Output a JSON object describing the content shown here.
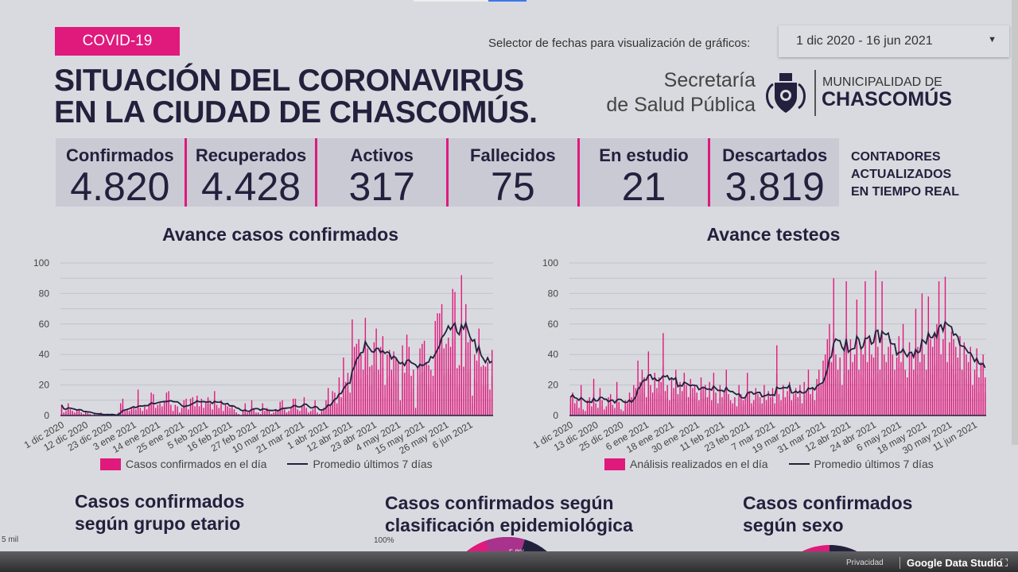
{
  "header": {
    "badge": "COVID-19",
    "title_line1": "SITUACIÓN DEL CORONAVIRUS",
    "title_line2": "EN LA CIUDAD DE CHASCOMÚS.",
    "selector_label": "Selector de fechas para visualización de gráficos:",
    "selector_value": "1 dic 2020 - 16 jun 2021",
    "sec_line1": "Secretaría",
    "sec_line2": "de Salud Pública",
    "muni_line1": "MUNICIPALIDAD DE",
    "muni_line2": "CHASCOMÚS"
  },
  "counters": [
    {
      "label": "Confirmados",
      "value": "4.820"
    },
    {
      "label": "Recuperados",
      "value": "4.428"
    },
    {
      "label": "Activos",
      "value": "317"
    },
    {
      "label": "Fallecidos",
      "value": "75"
    },
    {
      "label": "En estudio",
      "value": "21"
    },
    {
      "label": "Descartados",
      "value": "3.819"
    }
  ],
  "realtime": {
    "l1": "CONTADORES",
    "l2": "ACTUALIZADOS",
    "l3": "EN TIEMPO REAL"
  },
  "colors": {
    "accent": "#e0197d",
    "navy": "#22213d"
  },
  "chart_data": [
    {
      "type": "bar",
      "title": "Avance casos confirmados",
      "ylim": [
        0,
        100
      ],
      "yticks": [
        "0",
        "20",
        "40",
        "60",
        "80",
        "100"
      ],
      "grid": true,
      "legend_placement": "bottom",
      "start_date": "2020-12-01",
      "xticks": [
        "1 dic 2020",
        "12 dic 2020",
        "23 dic 2020",
        "3 ene 2021",
        "14 ene 2021",
        "25 ene 2021",
        "5 feb 2021",
        "16 feb 2021",
        "27 feb 2021",
        "10 mar 2021",
        "21 mar 2021",
        "1 abr 2021",
        "12 abr 2021",
        "23 abr 2021",
        "4 may 2021",
        "15 may 2021",
        "26 may 2021",
        "6 jun 2021"
      ],
      "xtick_step_days": 11,
      "series": [
        {
          "name": "Casos confirmados en el día",
          "kind": "bar",
          "values": [
            7,
            2,
            3,
            8,
            4,
            3,
            2,
            3,
            4,
            2,
            1,
            3,
            2,
            1,
            0,
            1,
            0,
            1,
            2,
            0,
            0,
            1,
            0,
            1,
            0,
            0,
            2,
            8,
            11,
            3,
            4,
            3,
            5,
            6,
            4,
            17,
            5,
            3,
            6,
            4,
            8,
            15,
            14,
            5,
            7,
            8,
            6,
            9,
            15,
            16,
            7,
            3,
            7,
            6,
            2,
            5,
            10,
            11,
            4,
            11,
            12,
            6,
            13,
            6,
            11,
            5,
            9,
            12,
            8,
            4,
            16,
            7,
            5,
            10,
            3,
            8,
            6,
            5,
            7,
            4,
            2,
            1,
            0,
            3,
            8,
            2,
            3,
            10,
            4,
            2,
            2,
            1,
            8,
            3,
            5,
            3,
            1,
            2,
            4,
            3,
            9,
            10,
            4,
            2,
            3,
            5,
            11,
            11,
            4,
            3,
            6,
            12,
            5,
            2,
            3,
            4,
            10,
            2,
            1,
            3,
            5,
            10,
            18,
            7,
            16,
            15,
            8,
            25,
            12,
            38,
            22,
            28,
            15,
            63,
            45,
            47,
            50,
            40,
            30,
            64,
            44,
            32,
            33,
            48,
            57,
            30,
            45,
            52,
            20,
            40,
            43,
            30,
            42,
            38,
            35,
            10,
            46,
            28,
            53,
            45,
            26,
            30,
            5,
            32,
            44,
            47,
            49,
            35,
            33,
            30,
            26,
            62,
            67,
            67,
            73,
            44,
            47,
            51,
            45,
            83,
            81,
            31,
            33,
            92,
            32,
            73,
            48,
            50,
            13,
            40,
            36,
            57,
            32,
            33,
            32,
            35,
            17,
            43
          ]
        },
        {
          "name": "Promedio últimos 7 días",
          "kind": "line",
          "of": "7-day average"
        }
      ]
    },
    {
      "type": "bar",
      "title": "Avance testeos",
      "ylim": [
        0,
        100
      ],
      "yticks": [
        "0",
        "20",
        "40",
        "60",
        "80",
        "100"
      ],
      "grid": true,
      "legend_placement": "bottom",
      "start_date": "2020-12-01",
      "xticks": [
        "1 dic 2020",
        "13 dic 2020",
        "25 dic 2020",
        "6 ene 2021",
        "18 ene 2021",
        "30 ene 2021",
        "11 feb 2021",
        "23 feb 2021",
        "7 mar 2021",
        "19 mar 2021",
        "31 mar 2021",
        "12 abr 2021",
        "24 abr 2021",
        "6 may 2021",
        "18 may 2021",
        "30 may 2021",
        "11 jun 2021"
      ],
      "xtick_step_days": 12,
      "series": [
        {
          "name": "Análisis realizados en el día",
          "kind": "bar",
          "values": [
            12,
            15,
            8,
            10,
            5,
            20,
            4,
            3,
            10,
            12,
            6,
            24,
            8,
            5,
            18,
            10,
            4,
            6,
            12,
            14,
            7,
            5,
            22,
            9,
            4,
            3,
            10,
            8,
            15,
            12,
            20,
            18,
            36,
            22,
            30,
            25,
            12,
            42,
            20,
            15,
            28,
            18,
            25,
            22,
            54,
            16,
            20,
            10,
            25,
            18,
            30,
            14,
            22,
            16,
            28,
            20,
            12,
            24,
            18,
            20,
            15,
            10,
            25,
            18,
            20,
            12,
            22,
            10,
            28,
            15,
            8,
            20,
            12,
            16,
            30,
            14,
            10,
            8,
            12,
            6,
            20,
            14,
            10,
            12,
            28,
            16,
            8,
            10,
            18,
            14,
            12,
            8,
            20,
            10,
            16,
            12,
            18,
            8,
            46,
            14,
            10,
            20,
            12,
            16,
            22,
            10,
            14,
            18,
            12,
            20,
            8,
            22,
            16,
            30,
            14,
            18,
            10,
            24,
            30,
            20,
            36,
            40,
            50,
            60,
            35,
            90,
            40,
            30,
            38,
            20,
            45,
            88,
            30,
            50,
            35,
            40,
            76,
            30,
            45,
            40,
            88,
            35,
            50,
            40,
            38,
            95,
            45,
            30,
            88,
            40,
            35,
            45,
            50,
            40,
            30,
            38,
            52,
            35,
            60,
            30,
            25,
            48,
            40,
            30,
            70,
            45,
            35,
            80,
            40,
            30,
            78,
            50,
            45,
            55,
            60,
            88,
            40,
            50,
            91,
            35,
            48,
            55,
            50,
            45,
            38,
            52,
            30,
            48,
            40,
            35,
            45,
            20,
            30,
            44,
            25,
            35,
            40,
            25
          ]
        },
        {
          "name": "Promedio últimos 7 días",
          "kind": "line",
          "of": "7-day average"
        }
      ]
    }
  ],
  "sections": {
    "age_l1": "Casos confirmados",
    "age_l2": "según grupo etario",
    "age_axis": "5 mil",
    "epi_l1": "Casos confirmados según",
    "epi_l2": "clasificación epidemiológica",
    "epi_axis": "100%",
    "epi_slice": "5,8%",
    "sex_l1": "Casos confirmados",
    "sex_l2": "según sexo"
  },
  "footer": {
    "privacy": "Privacidad",
    "brand": "Google Data Studio"
  }
}
